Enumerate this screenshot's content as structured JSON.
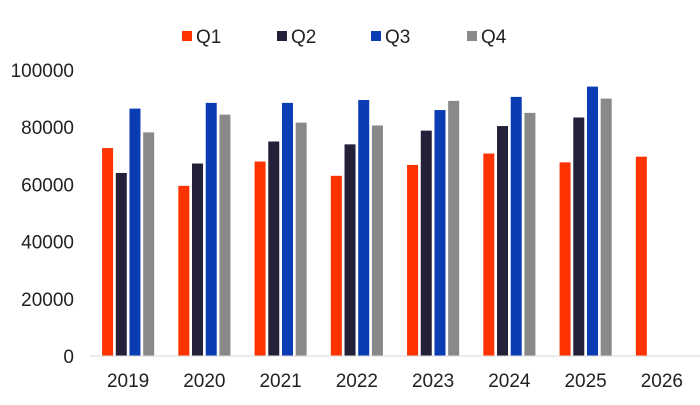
{
  "chart_data": {
    "type": "bar",
    "title": "",
    "xlabel": "",
    "ylabel": "",
    "categories": [
      "2019",
      "2020",
      "2021",
      "2022",
      "2023",
      "2024",
      "2025",
      "2026"
    ],
    "ylim": [
      0,
      100000
    ],
    "yticks": [
      0,
      20000,
      40000,
      60000,
      80000,
      100000
    ],
    "ytick_labels": [
      "0",
      "20000",
      "40000",
      "60000",
      "80000",
      "100000"
    ],
    "grid": false,
    "legend_position": "top-center",
    "series": [
      {
        "name": "Q1",
        "color": "#ff3300",
        "values": [
          72700,
          59500,
          68000,
          63000,
          66800,
          70800,
          67700,
          69700
        ]
      },
      {
        "name": "Q2",
        "color": "#23213a",
        "values": [
          64000,
          67300,
          75000,
          74000,
          78800,
          80400,
          83400,
          null
        ]
      },
      {
        "name": "Q3",
        "color": "#0a3cb4",
        "values": [
          86500,
          88500,
          88500,
          89500,
          86000,
          90600,
          94200,
          null
        ]
      },
      {
        "name": "Q4",
        "color": "#898989",
        "values": [
          78200,
          84400,
          81600,
          80600,
          89200,
          85000,
          90000,
          null
        ]
      }
    ]
  }
}
